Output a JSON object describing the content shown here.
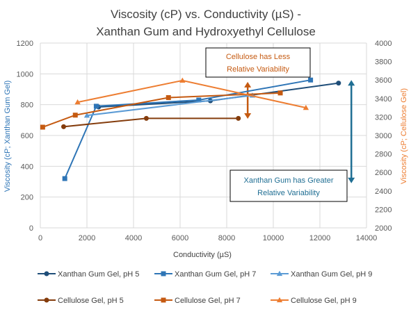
{
  "chart_data": {
    "type": "scatter",
    "title_line1": "Viscosity (cP) vs. Conductivity (µS) -",
    "title_line2": "Xanthan Gum and Hydroxyethyl Cellulose",
    "xlabel": "Conductivity (µS)",
    "ylabel_left": "Viscosity (cP; Xanthan Gum Gel)",
    "ylabel_right": "Viscosity (cP; Cellulose Gel)",
    "xlim": [
      0,
      14000
    ],
    "ylim_left": [
      0,
      1200
    ],
    "ylim_right": [
      2000,
      4000
    ],
    "x_ticks": [
      "0",
      "2000",
      "4000",
      "6000",
      "8000",
      "10000",
      "12000",
      "14000"
    ],
    "y_left_ticks": [
      "0",
      "200",
      "400",
      "600",
      "800",
      "1000",
      "1200"
    ],
    "y_right_ticks": [
      "2000",
      "2200",
      "2400",
      "2600",
      "2800",
      "3000",
      "3200",
      "3400",
      "3600",
      "3800",
      "4000"
    ],
    "grid": "vertical and horizontal",
    "legend_position": "bottom",
    "colors": {
      "xanthan_ph5": "#1f4e79",
      "xanthan_ph7": "#2e75b6",
      "xanthan_ph9": "#5b9bd5",
      "cellulose_ph5": "#843c0c",
      "cellulose_ph7": "#c55a11",
      "cellulose_ph9": "#ed7d31",
      "xanthan_annotation": "#1f6e93",
      "cellulose_annotation": "#c55a11"
    },
    "series": [
      {
        "name": "Xanthan Gum Gel, pH 5",
        "axis": "left",
        "marker": "circle",
        "color_key": "xanthan_ph5",
        "points": [
          [
            2500,
            785
          ],
          [
            7300,
            825
          ],
          [
            12800,
            940
          ]
        ]
      },
      {
        "name": "Xanthan Gum Gel, pH 7",
        "axis": "left",
        "marker": "square",
        "color_key": "xanthan_ph7",
        "points": [
          [
            1050,
            320
          ],
          [
            2400,
            790
          ],
          [
            6800,
            830
          ],
          [
            11600,
            960
          ]
        ]
      },
      {
        "name": "Xanthan Gum Gel, pH 9",
        "axis": "left",
        "marker": "triangle",
        "color_key": "xanthan_ph9",
        "points": [
          [
            2000,
            730
          ],
          [
            9100,
            860
          ]
        ]
      },
      {
        "name": "Cellulose Gel, pH 5",
        "axis": "right",
        "marker": "circle",
        "color_key": "cellulose_ph5",
        "points": [
          [
            1000,
            3095
          ],
          [
            4550,
            3185
          ],
          [
            8500,
            3185
          ]
        ]
      },
      {
        "name": "Cellulose Gel, pH 7",
        "axis": "right",
        "marker": "square",
        "color_key": "cellulose_ph7",
        "points": [
          [
            100,
            3090
          ],
          [
            1500,
            3220
          ],
          [
            5500,
            3410
          ],
          [
            10300,
            3460
          ]
        ]
      },
      {
        "name": "Cellulose Gel, pH 9",
        "axis": "right",
        "marker": "triangle",
        "color_key": "cellulose_ph9",
        "points": [
          [
            1600,
            3360
          ],
          [
            6100,
            3595
          ],
          [
            11400,
            3300
          ]
        ]
      }
    ],
    "annotations": [
      {
        "id": "cellulose",
        "line1": "Cellulose has Less",
        "line2": "Relative Variability",
        "color_key": "cellulose_annotation",
        "axis": "right",
        "x": 8900,
        "y_range": [
          3180,
          3580
        ]
      },
      {
        "id": "xanthan",
        "line1": "Xanthan Gum has Greater",
        "line2": "Relative Variability",
        "color_key": "xanthan_annotation",
        "axis": "left",
        "x": 13350,
        "y_range": [
          290,
          960
        ]
      }
    ]
  }
}
